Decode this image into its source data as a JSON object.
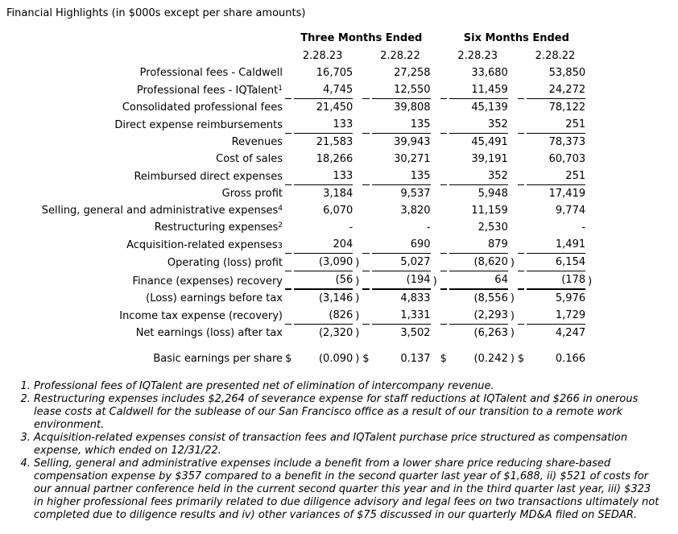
{
  "title": "Financial Highlights (in $000s except per share amounts)",
  "table": {
    "col_groups": [
      "Three Months Ended",
      "Six Months Ended"
    ],
    "periods": [
      "2.28.23",
      "2.28.22",
      "2.28.23",
      "2.28.22"
    ],
    "rows": [
      {
        "label": "Professional fees - Caldwell",
        "values": [
          "16,705",
          "27,258",
          "33,680",
          "53,850"
        ]
      },
      {
        "label": "Professional fees - IQTalent",
        "sup": "1",
        "sup_style": "raised",
        "values": [
          "4,745",
          "12,550",
          "11,459",
          "24,272"
        ],
        "rule": "single"
      },
      {
        "label": "Consolidated professional fees",
        "values": [
          "21,450",
          "39,808",
          "45,139",
          "78,122"
        ]
      },
      {
        "label": "Direct expense reimbursements",
        "values": [
          "133",
          "135",
          "352",
          "251"
        ],
        "rule": "single"
      },
      {
        "label": "Revenues",
        "values": [
          "21,583",
          "39,943",
          "45,491",
          "78,373"
        ]
      },
      {
        "label": "Cost of sales",
        "values": [
          "18,266",
          "30,271",
          "39,191",
          "60,703"
        ]
      },
      {
        "label": "Reimbursed direct expenses",
        "values": [
          "133",
          "135",
          "352",
          "251"
        ],
        "rule": "single"
      },
      {
        "label": "Gross profit",
        "values": [
          "3,184",
          "9,537",
          "5,948",
          "17,419"
        ]
      },
      {
        "label": "Selling, general and administrative expenses",
        "sup": "4",
        "sup_style": "raised",
        "values": [
          "6,070",
          "3,820",
          "11,159",
          "9,774"
        ]
      },
      {
        "label": "Restructuring expenses",
        "sup": "2",
        "sup_style": "raised",
        "values": [
          "-",
          "-",
          "2,530",
          "-"
        ]
      },
      {
        "label": "Acquisition-related expenses",
        "sup": "3",
        "sup_style": "baseline",
        "values": [
          "204",
          "690",
          "879",
          "1,491"
        ],
        "rule": "single"
      },
      {
        "label": "Operating (loss) profit",
        "values": [
          "(3,090)",
          "5,027",
          "(8,620)",
          "6,154"
        ],
        "rule": "single"
      },
      {
        "label": "Finance (expenses) recovery",
        "values": [
          "(56)",
          "(194)",
          "64",
          "(178)"
        ],
        "rule": "thick"
      },
      {
        "label": "(Loss) earnings before tax",
        "values": [
          "(3,146)",
          "4,833",
          "(8,556)",
          "5,976"
        ]
      },
      {
        "label": "Income tax expense (recovery)",
        "values": [
          "(826)",
          "1,331",
          "(2,293)",
          "1,729"
        ],
        "rule": "single"
      },
      {
        "label": "Net earnings (loss) after tax",
        "values": [
          "(2,320)",
          "3,502",
          "(6,263)",
          "4,247"
        ]
      },
      {
        "label": "Basic earnings per share",
        "currency": "$",
        "gap_before": true,
        "values": [
          "(0.090)",
          "0.137",
          "(0.242)",
          "0.166"
        ]
      }
    ]
  },
  "footnotes": [
    "Professional fees of IQTalent are presented net of elimination of intercompany revenue.",
    "Restructuring expenses includes $2,264 of severance expense for staff reductions at IQTalent and $266 in onerous lease costs at Caldwell for the sublease of our San Francisco office as a result of our transition to a remote work environment.",
    "Acquisition-related expenses consist of transaction fees and IQTalent purchase price structured as compensation expense, which ended on 12/31/22.",
    "Selling, general and administrative expenses include a benefit from a lower share price reducing share-based compensation expense by $357 compared to a benefit in the second quarter last year of $1,688, ii) $521 of costs for our annual partner conference held in the current second quarter this year and in the third quarter last year, iii) $323 in higher professional fees primarily related to due diligence advisory and legal fees on two transactions ultimately not completed due to diligence results and iv) other variances of $75 discussed in our quarterly MD&A filed on SEDAR."
  ]
}
